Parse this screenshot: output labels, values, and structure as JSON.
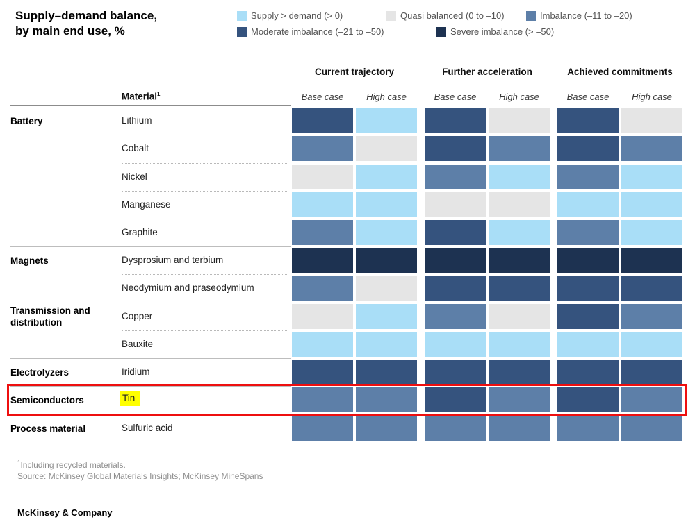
{
  "title": {
    "line1": "Supply–demand balance,",
    "line2": "by main end use, %"
  },
  "legend": {
    "items": [
      {
        "key": "supply",
        "label": "Supply > demand (> 0)",
        "color": "#a9def7"
      },
      {
        "key": "quasi",
        "label": "Quasi balanced (0 to –10)",
        "color": "#e5e5e5"
      },
      {
        "key": "imbalance",
        "label": "Imbalance (–11 to –20)",
        "color": "#5d7fa8"
      },
      {
        "key": "moderate",
        "label": "Moderate imbalance (–21 to –50)",
        "color": "#35537e"
      },
      {
        "key": "severe",
        "label": "Severe imbalance (> –50)",
        "color": "#1d3251"
      }
    ]
  },
  "header": {
    "material_label": "Material",
    "material_sup": "1",
    "groups": [
      "Current trajectory",
      "Further acceleration",
      "Achieved commitments"
    ],
    "cases": [
      "Base case",
      "High case"
    ]
  },
  "chart_data": {
    "type": "heatmap",
    "unit": "%",
    "columns": [
      {
        "scenario": "Current trajectory",
        "case": "Base case"
      },
      {
        "scenario": "Current trajectory",
        "case": "High case"
      },
      {
        "scenario": "Further acceleration",
        "case": "Base case"
      },
      {
        "scenario": "Further acceleration",
        "case": "High case"
      },
      {
        "scenario": "Achieved commitments",
        "case": "Base case"
      },
      {
        "scenario": "Achieved commitments",
        "case": "High case"
      }
    ],
    "value_categories": {
      "supply": "Supply > demand (> 0)",
      "quasi": "Quasi balanced (0 to –10)",
      "imbalance": "Imbalance (–11 to –20)",
      "moderate": "Moderate imbalance (–21 to –50)",
      "severe": "Severe imbalance (> –50)"
    },
    "rows": [
      {
        "group": "Battery",
        "material": "Lithium",
        "values": [
          "moderate",
          "supply",
          "moderate",
          "quasi",
          "moderate",
          "quasi"
        ]
      },
      {
        "group": "Battery",
        "material": "Cobalt",
        "values": [
          "imbalance",
          "quasi",
          "moderate",
          "imbalance",
          "moderate",
          "imbalance"
        ]
      },
      {
        "group": "Battery",
        "material": "Nickel",
        "values": [
          "quasi",
          "supply",
          "imbalance",
          "supply",
          "imbalance",
          "supply"
        ]
      },
      {
        "group": "Battery",
        "material": "Manganese",
        "values": [
          "supply",
          "supply",
          "quasi",
          "quasi",
          "supply",
          "supply"
        ]
      },
      {
        "group": "Battery",
        "material": "Graphite",
        "values": [
          "imbalance",
          "supply",
          "moderate",
          "supply",
          "imbalance",
          "supply"
        ]
      },
      {
        "group": "Magnets",
        "material": "Dysprosium and terbium",
        "values": [
          "severe",
          "severe",
          "severe",
          "severe",
          "severe",
          "severe"
        ]
      },
      {
        "group": "Magnets",
        "material": "Neodymium and praseodymium",
        "values": [
          "imbalance",
          "quasi",
          "moderate",
          "moderate",
          "moderate",
          "moderate"
        ]
      },
      {
        "group": "Transmission and distribution",
        "material": "Copper",
        "values": [
          "quasi",
          "supply",
          "imbalance",
          "quasi",
          "moderate",
          "imbalance"
        ]
      },
      {
        "group": "Transmission and distribution",
        "material": "Bauxite",
        "values": [
          "supply",
          "supply",
          "supply",
          "supply",
          "supply",
          "supply"
        ]
      },
      {
        "group": "Electrolyzers",
        "material": "Iridium",
        "values": [
          "moderate",
          "moderate",
          "moderate",
          "moderate",
          "moderate",
          "moderate"
        ]
      },
      {
        "group": "Semiconductors",
        "material": "Tin",
        "values": [
          "imbalance",
          "imbalance",
          "moderate",
          "imbalance",
          "moderate",
          "imbalance"
        ]
      },
      {
        "group": "Process material",
        "material": "Sulfuric acid",
        "values": [
          "imbalance",
          "imbalance",
          "imbalance",
          "imbalance",
          "imbalance",
          "imbalance"
        ]
      }
    ]
  },
  "annotations": {
    "highlighted_material": "Tin",
    "highlight_color": "#ffff00",
    "red_box_row": "Semiconductors — Tin",
    "red_box_color": "#ee0f0f"
  },
  "footnotes": {
    "sup": "1",
    "note": "Including recycled materials.",
    "source": "Source: McKinsey Global Materials Insights; McKinsey MineSpans"
  },
  "brand": "McKinsey & Company"
}
